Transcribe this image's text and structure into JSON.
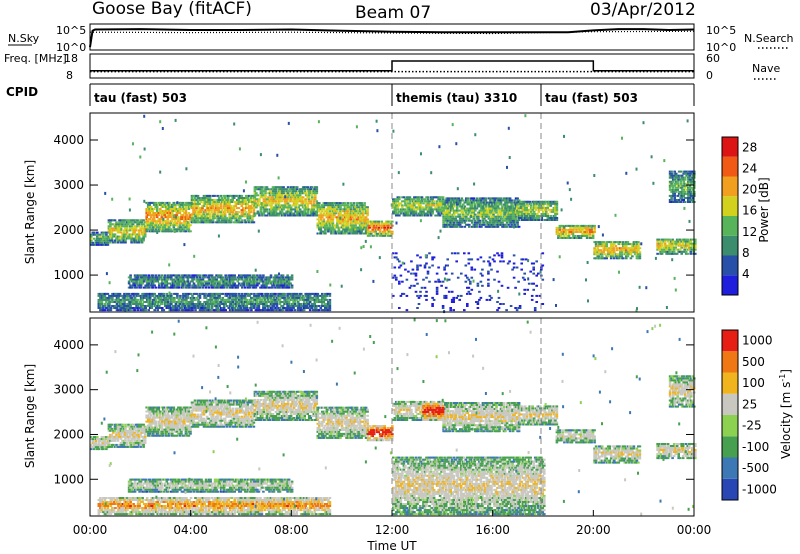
{
  "header": {
    "title_left": "Goose Bay (fitACF)",
    "title_center": "Beam 07",
    "title_right": "03/Apr/2012"
  },
  "chart_data": [
    {
      "type": "line",
      "panel": "noise",
      "ylabel_left": "N.Sky",
      "ylabel_right": "N.Search",
      "yticks_left": [
        "10^5",
        "10^0"
      ],
      "yticks_right": [
        "10^5",
        "10^0"
      ],
      "x_range_hours": [
        0,
        24
      ],
      "series": [
        {
          "name": "N.Sky",
          "style": "solid",
          "x": [
            0,
            0.1,
            0.2,
            2,
            4,
            6,
            8,
            10,
            12,
            14,
            16,
            18,
            19,
            20,
            21,
            22,
            23,
            24
          ],
          "y": [
            0.2,
            3.9,
            4.2,
            4.3,
            4.1,
            4.1,
            4.2,
            3.9,
            3.7,
            3.6,
            3.6,
            3.6,
            3.6,
            4.0,
            4.3,
            4.3,
            4.1,
            4.2
          ]
        },
        {
          "name": "N.Search",
          "style": "dotted",
          "x": [
            0,
            4,
            8,
            12,
            16,
            20,
            24
          ],
          "y": [
            3.6,
            3.5,
            3.6,
            3.4,
            3.3,
            3.7,
            3.8
          ]
        }
      ]
    },
    {
      "type": "line",
      "panel": "frequency",
      "ylabel_left": "Freq. [MHz]",
      "ylabel_right": "Nave",
      "yticks_left": [
        "18",
        "8"
      ],
      "yticks_right": [
        "60",
        "0"
      ],
      "x_range_hours": [
        0,
        24
      ],
      "series": [
        {
          "name": "Freq.",
          "style": "solid",
          "x": [
            0,
            12,
            12,
            20,
            20,
            24
          ],
          "y": [
            10.6,
            10.6,
            15.5,
            15.5,
            10.6,
            10.6
          ]
        },
        {
          "name": "Nave",
          "style": "dotted",
          "x": [
            0,
            24
          ],
          "y": [
            10.2,
            10.2
          ]
        }
      ]
    },
    {
      "type": "table",
      "panel": "cpid",
      "label": "CPID",
      "segments": [
        {
          "start": 0,
          "end": 12,
          "label": "tau (fast) 503"
        },
        {
          "start": 12,
          "end": 18,
          "label": "themis (tau) 3310"
        },
        {
          "start": 18,
          "end": 24,
          "label": "tau (fast) 503"
        }
      ]
    },
    {
      "type": "heatmap",
      "panel": "power",
      "ylabel": "Slant Range [km]",
      "yticks": [
        1000,
        2000,
        3000,
        4000
      ],
      "ylim": [
        180,
        4600
      ],
      "x_range_hours": [
        0,
        24
      ],
      "colorbar_label": "Power [dB]",
      "colorbar_ticks": [
        4,
        8,
        12,
        16,
        20,
        24,
        28
      ],
      "colorbar_range": [
        0,
        30
      ],
      "colors": [
        "#1e1edc",
        "#2850a8",
        "#3c8c6e",
        "#58b45a",
        "#d2d21e",
        "#f0a01e",
        "#f05a14",
        "#dc1414"
      ],
      "echo_bands": [
        {
          "t0": 0.0,
          "t1": 0.7,
          "r0": 1650,
          "r1": 1950,
          "level": 0.35
        },
        {
          "t0": 0.7,
          "t1": 2.2,
          "r0": 1700,
          "r1": 2200,
          "level": 0.5
        },
        {
          "t0": 2.2,
          "t1": 4.0,
          "r0": 1950,
          "r1": 2600,
          "level": 0.6
        },
        {
          "t0": 4.0,
          "t1": 6.5,
          "r0": 2150,
          "r1": 2750,
          "level": 0.55
        },
        {
          "t0": 6.5,
          "t1": 9.0,
          "r0": 2300,
          "r1": 2950,
          "level": 0.5
        },
        {
          "t0": 9.0,
          "t1": 11.0,
          "r0": 1900,
          "r1": 2600,
          "level": 0.55
        },
        {
          "t0": 11.0,
          "t1": 12.0,
          "r0": 1850,
          "r1": 2200,
          "level": 0.65
        },
        {
          "t0": 12.0,
          "t1": 14.0,
          "r0": 2300,
          "r1": 2750,
          "level": 0.45
        },
        {
          "t0": 14.0,
          "t1": 17.0,
          "r0": 2050,
          "r1": 2700,
          "level": 0.4
        },
        {
          "t0": 17.0,
          "t1": 18.5,
          "r0": 2200,
          "r1": 2650,
          "level": 0.45
        },
        {
          "t0": 18.5,
          "t1": 20.0,
          "r0": 1800,
          "r1": 2100,
          "level": 0.6
        },
        {
          "t0": 20.0,
          "t1": 21.8,
          "r0": 1350,
          "r1": 1750,
          "level": 0.55
        },
        {
          "t0": 22.5,
          "t1": 24.0,
          "r0": 1450,
          "r1": 1800,
          "level": 0.5
        },
        {
          "t0": 1.5,
          "t1": 8.0,
          "r0": 700,
          "r1": 1000,
          "level": 0.3
        },
        {
          "t0": 0.3,
          "t1": 9.5,
          "r0": 200,
          "r1": 600,
          "level": 0.3
        },
        {
          "t0": 12.0,
          "t1": 18.0,
          "r0": 200,
          "r1": 1500,
          "level": 0.1
        },
        {
          "t0": 23.0,
          "t1": 24.0,
          "r0": 2600,
          "r1": 3300,
          "level": 0.35
        }
      ]
    },
    {
      "type": "heatmap",
      "panel": "velocity",
      "ylabel": "Slant Range [km]",
      "yticks": [
        1000,
        2000,
        3000,
        4000
      ],
      "ylim": [
        180,
        4600
      ],
      "x_range_hours": [
        0,
        24
      ],
      "xticks": [
        "00:00",
        "04:00",
        "08:00",
        "12:00",
        "16:00",
        "20:00",
        "00:00"
      ],
      "xlabel": "Time UT",
      "colorbar_label": "Velocity [m s^-1]",
      "colorbar_ticks": [
        1000,
        500,
        100,
        25,
        -25,
        -100,
        -500,
        -1000
      ],
      "colors": [
        "#2846b4",
        "#3c78b4",
        "#46a050",
        "#8cd250",
        "#c8c8c0",
        "#f0b41e",
        "#f07814",
        "#e61e14"
      ],
      "echo_bands": [
        {
          "t0": 0.0,
          "t1": 0.7,
          "r0": 1650,
          "r1": 1950,
          "level": 0.5
        },
        {
          "t0": 0.7,
          "t1": 2.2,
          "r0": 1700,
          "r1": 2200,
          "level": 0.5
        },
        {
          "t0": 2.2,
          "t1": 4.0,
          "r0": 1950,
          "r1": 2600,
          "level": 0.5
        },
        {
          "t0": 4.0,
          "t1": 6.5,
          "r0": 2150,
          "r1": 2750,
          "level": 0.5
        },
        {
          "t0": 6.5,
          "t1": 9.0,
          "r0": 2300,
          "r1": 2950,
          "level": 0.5
        },
        {
          "t0": 9.0,
          "t1": 11.0,
          "r0": 1900,
          "r1": 2600,
          "level": 0.5
        },
        {
          "t0": 11.0,
          "t1": 12.0,
          "r0": 1850,
          "r1": 2200,
          "level": 0.85
        },
        {
          "t0": 12.0,
          "t1": 14.0,
          "r0": 2300,
          "r1": 2750,
          "level": 0.5
        },
        {
          "t0": 14.0,
          "t1": 17.0,
          "r0": 2050,
          "r1": 2700,
          "level": 0.5
        },
        {
          "t0": 17.0,
          "t1": 18.5,
          "r0": 2200,
          "r1": 2650,
          "level": 0.5
        },
        {
          "t0": 18.5,
          "t1": 20.0,
          "r0": 1800,
          "r1": 2100,
          "level": 0.45
        },
        {
          "t0": 20.0,
          "t1": 21.8,
          "r0": 1350,
          "r1": 1750,
          "level": 0.5
        },
        {
          "t0": 22.5,
          "t1": 24.0,
          "r0": 1450,
          "r1": 1800,
          "level": 0.5
        },
        {
          "t0": 1.5,
          "t1": 8.0,
          "r0": 700,
          "r1": 1000,
          "level": 0.4
        },
        {
          "t0": 0.3,
          "t1": 9.5,
          "r0": 200,
          "r1": 600,
          "level": 0.65
        },
        {
          "t0": 12.0,
          "t1": 18.0,
          "r0": 200,
          "r1": 1500,
          "level": 0.5
        },
        {
          "t0": 23.0,
          "t1": 24.0,
          "r0": 2600,
          "r1": 3300,
          "level": 0.5
        },
        {
          "t0": 13.2,
          "t1": 14.0,
          "r0": 2300,
          "r1": 2700,
          "level": 0.85
        }
      ]
    }
  ]
}
